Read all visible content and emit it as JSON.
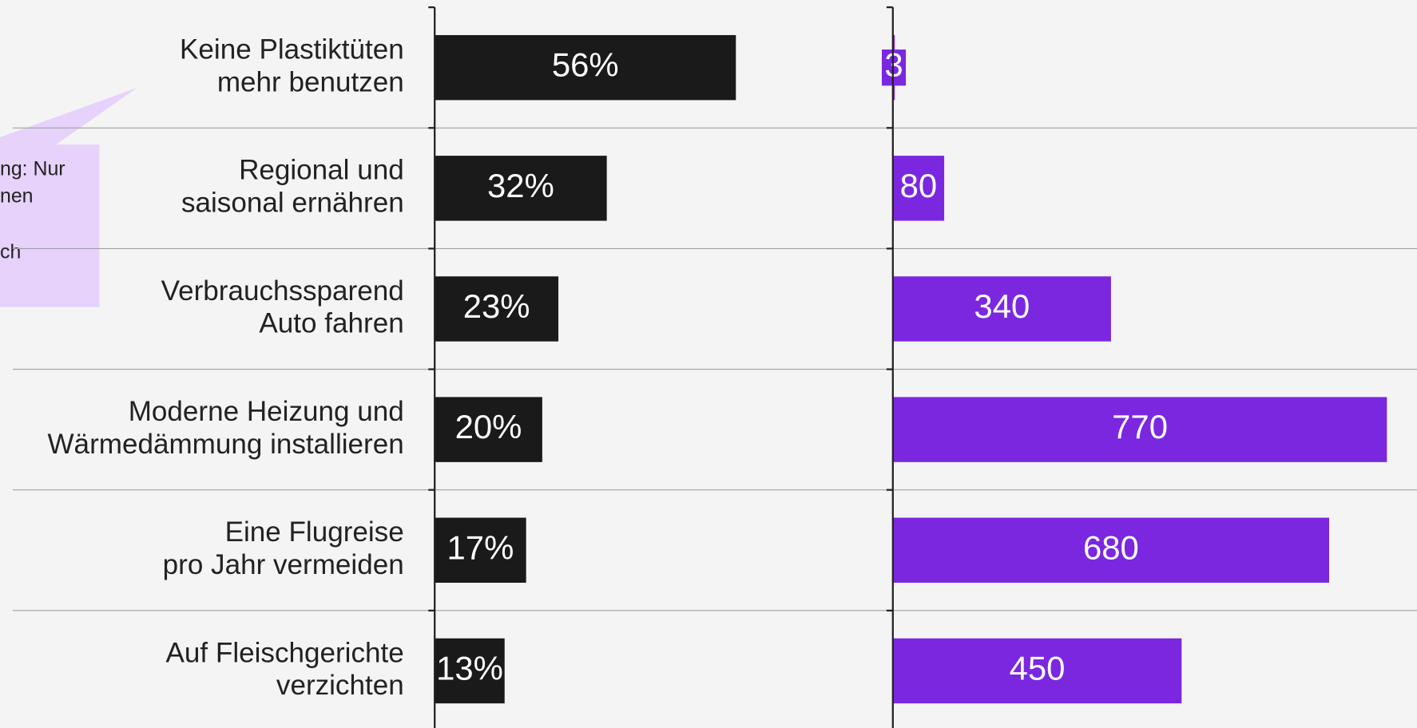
{
  "chart_data": [
    {
      "type": "bar",
      "categories": [
        [
          "Keine Plastiktüten",
          "mehr benutzen"
        ],
        [
          "Regional und",
          "saisonal ernähren"
        ],
        [
          "Verbrauchssparend",
          "Auto fahren"
        ],
        [
          "Moderne Heizung und",
          "Wärmedämmung installieren"
        ],
        [
          "Eine Flugreise",
          "pro Jahr vermeiden"
        ],
        [
          "Auf Fleischgerichte",
          "verzichten"
        ]
      ],
      "values": [
        56,
        32,
        23,
        20,
        17,
        13
      ],
      "value_labels": [
        "56%",
        "32%",
        "23%",
        "20%",
        "17%",
        "13%"
      ],
      "color": "#1a1a1a",
      "xlim": [
        0,
        83
      ]
    },
    {
      "type": "bar",
      "values": [
        3,
        80,
        340,
        770,
        680,
        450
      ],
      "color": "#7b27e0",
      "xlim": [
        0,
        800
      ]
    }
  ],
  "annotation": [
    "ng: Nur",
    "nen",
    "ch"
  ]
}
